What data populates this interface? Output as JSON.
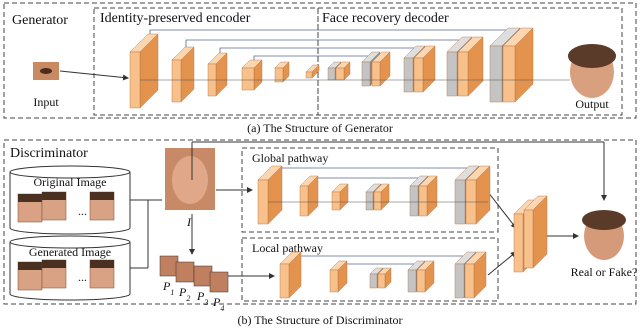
{
  "generator": {
    "title": "Generator",
    "encoder_label": "Identity-preserved encoder",
    "decoder_label": "Face recovery decoder",
    "input_label": "Input",
    "output_label": "Output",
    "caption": "(a) The Structure of Generator"
  },
  "discriminator": {
    "title": "Discriminator",
    "original_label": "Original Image",
    "original_ellipsis": "...",
    "generated_label": "Generated Image",
    "generated_ellipsis": "...",
    "image_label": "I",
    "global_label": "Global pathway",
    "local_label": "Local pathway",
    "patches": [
      {
        "letter": "P",
        "sub": "1"
      },
      {
        "letter": "P",
        "sub": "2"
      },
      {
        "letter": "P",
        "sub": "3"
      },
      {
        "letter": "P",
        "sub": "4"
      }
    ],
    "output_label": "Real or Fake?",
    "caption": "(b) The Structure of Discriminator"
  }
}
